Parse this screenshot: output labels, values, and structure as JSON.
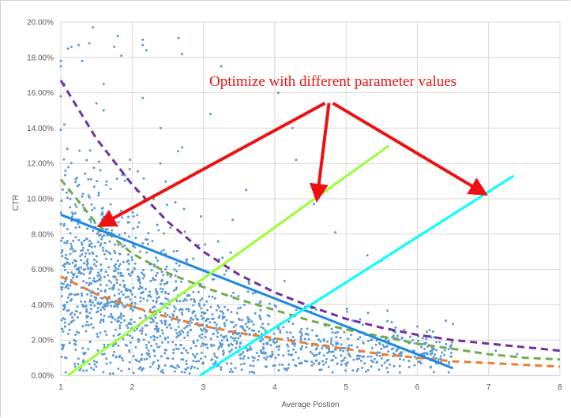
{
  "chart_data": {
    "type": "scatter",
    "title": "",
    "xlabel": "Average Postion",
    "ylabel": "CTR",
    "xlim": [
      1,
      8
    ],
    "ylim": [
      0,
      0.2
    ],
    "x_ticks": [
      "1",
      "2",
      "3",
      "4",
      "5",
      "6",
      "7",
      "8"
    ],
    "y_ticks": [
      "0.00%",
      "2.00%",
      "4.00%",
      "6.00%",
      "8.00%",
      "10.00%",
      "12.00%",
      "14.00%",
      "16.00%",
      "18.00%",
      "20.00%"
    ],
    "grid": true,
    "annotation": {
      "text": "Optimize with different parameter values",
      "color": "#ee1111",
      "anchor": [
        4.75,
        0.163
      ],
      "arrow_origin": [
        4.75,
        0.155
      ],
      "arrow_targets": [
        [
          1.6,
          0.086
        ],
        [
          4.6,
          0.102
        ],
        [
          6.9,
          0.104
        ]
      ]
    },
    "scatter_series": {
      "name": "",
      "color": "#5b9bd5",
      "outliers": [
        [
          1.0,
          0.178
        ],
        [
          1.0,
          0.175
        ],
        [
          1.05,
          0.165
        ],
        [
          1.0,
          0.158
        ],
        [
          1.1,
          0.185
        ],
        [
          1.15,
          0.186
        ],
        [
          1.25,
          0.187
        ],
        [
          1.3,
          0.178
        ],
        [
          1.4,
          0.188
        ],
        [
          1.45,
          0.197
        ],
        [
          1.6,
          0.165
        ],
        [
          1.75,
          0.186
        ],
        [
          1.8,
          0.192
        ],
        [
          1.85,
          0.181
        ],
        [
          2.15,
          0.19
        ],
        [
          2.15,
          0.187
        ],
        [
          2.2,
          0.184
        ],
        [
          2.65,
          0.191
        ],
        [
          2.7,
          0.182
        ],
        [
          3.25,
          0.175
        ],
        [
          3.1,
          0.148
        ],
        [
          2.15,
          0.157
        ],
        [
          4.05,
          0.16
        ],
        [
          4.25,
          0.14
        ],
        [
          1.5,
          0.154
        ],
        [
          1.6,
          0.15
        ],
        [
          1.05,
          0.142
        ],
        [
          1.0,
          0.139
        ],
        [
          2.7,
          0.129
        ],
        [
          4.3,
          0.122
        ],
        [
          3.6,
          0.105
        ],
        [
          4.55,
          0.097
        ],
        [
          4.85,
          0.081
        ],
        [
          5.5,
          0.065
        ],
        [
          5.3,
          0.068
        ],
        [
          6.4,
          0.031
        ],
        [
          6.5,
          0.029
        ],
        [
          7.1,
          0.014
        ],
        [
          7.4,
          0.012
        ],
        [
          2.4,
          0.14
        ]
      ],
      "cluster": {
        "count": 1700,
        "x_range": [
          1,
          6.5
        ],
        "y_range": [
          0,
          0.13
        ]
      }
    },
    "series": [
      {
        "style": "dashed",
        "color": "#7030a0",
        "x": [
          1.0,
          1.5,
          2.0,
          2.5,
          3.0,
          3.5,
          4.0,
          4.5,
          5.0,
          5.5,
          6.0,
          6.5,
          7.0,
          7.5,
          8.0
        ],
        "y": [
          0.167,
          0.134,
          0.108,
          0.087,
          0.07,
          0.057,
          0.047,
          0.039,
          0.032,
          0.027,
          0.023,
          0.02,
          0.018,
          0.016,
          0.014
        ]
      },
      {
        "style": "dashed",
        "color": "#70ad47",
        "x": [
          1.0,
          1.5,
          2.0,
          2.5,
          3.0,
          3.5,
          4.0,
          4.5,
          5.0,
          5.5,
          6.0,
          6.5,
          7.0,
          7.5,
          8.0
        ],
        "y": [
          0.111,
          0.086,
          0.069,
          0.058,
          0.05,
          0.043,
          0.037,
          0.031,
          0.026,
          0.022,
          0.018,
          0.015,
          0.012,
          0.01,
          0.009
        ]
      },
      {
        "style": "dashed",
        "color": "#ed7d31",
        "x": [
          1.0,
          1.5,
          2.0,
          2.5,
          3.0,
          3.5,
          4.0,
          4.5,
          5.0,
          5.5,
          6.0,
          6.5,
          7.0,
          7.5,
          8.0
        ],
        "y": [
          0.056,
          0.046,
          0.039,
          0.033,
          0.028,
          0.024,
          0.021,
          0.018,
          0.015,
          0.012,
          0.01,
          0.008,
          0.007,
          0.006,
          0.005
        ]
      },
      {
        "style": "solid",
        "color": "#1e88e5",
        "x": [
          1.0,
          6.5
        ],
        "y": [
          0.091,
          0.004
        ]
      },
      {
        "style": "solid",
        "color": "#99ff33",
        "x": [
          1.1,
          5.6
        ],
        "y": [
          0.0,
          0.13
        ]
      },
      {
        "style": "solid",
        "color": "#00ffff",
        "x": [
          2.95,
          7.35
        ],
        "y": [
          0.0,
          0.113
        ]
      }
    ]
  }
}
